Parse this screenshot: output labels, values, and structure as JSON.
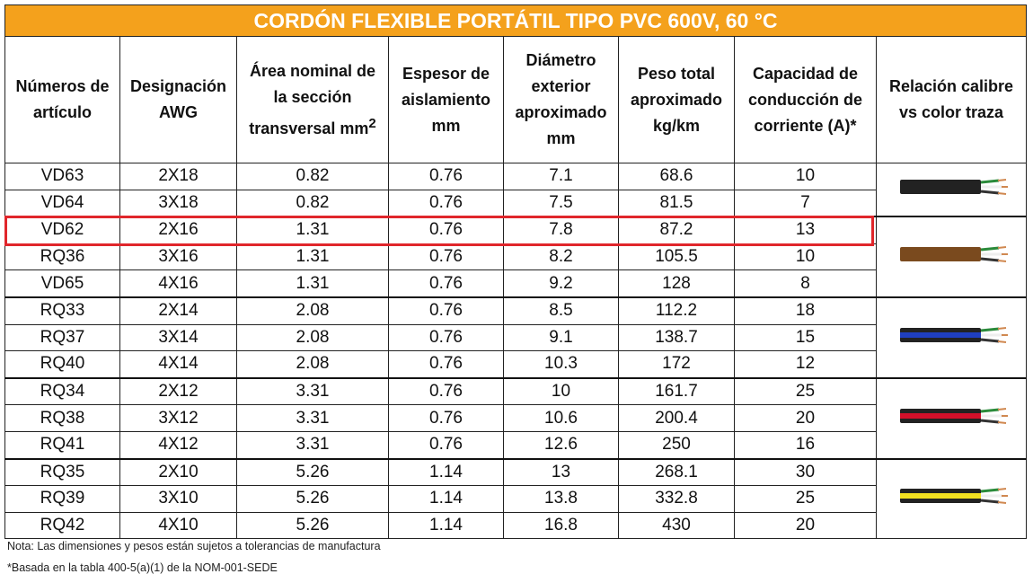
{
  "title": "CORDÓN FLEXIBLE PORTÁTIL TIPO PVC 600V, 60 °C",
  "header": [
    "Números de artículo",
    "Designación AWG",
    {
      "text": "Área nominal de la sección transversal mm",
      "sup": "2"
    },
    "Espesor de aislamiento mm",
    "Diámetro exterior aproximado mm",
    "Peso total aproximado kg/km",
    "Capacidad de conducción de corriente (A)*",
    "Relación calibre vs color traza"
  ],
  "rows": [
    [
      "VD63",
      "2X18",
      "0.82",
      "0.76",
      "7.1",
      "68.6",
      "10"
    ],
    [
      "VD64",
      "3X18",
      "0.82",
      "0.76",
      "7.5",
      "81.5",
      "7"
    ],
    [
      "VD62",
      "2X16",
      "1.31",
      "0.76",
      "7.8",
      "87.2",
      "13"
    ],
    [
      "RQ36",
      "3X16",
      "1.31",
      "0.76",
      "8.2",
      "105.5",
      "10"
    ],
    [
      "VD65",
      "4X16",
      "1.31",
      "0.76",
      "9.2",
      "128",
      "8"
    ],
    [
      "RQ33",
      "2X14",
      "2.08",
      "0.76",
      "8.5",
      "112.2",
      "18"
    ],
    [
      "RQ37",
      "3X14",
      "2.08",
      "0.76",
      "9.1",
      "138.7",
      "15"
    ],
    [
      "RQ40",
      "4X14",
      "2.08",
      "0.76",
      "10.3",
      "172",
      "12"
    ],
    [
      "RQ34",
      "2X12",
      "3.31",
      "0.76",
      "10",
      "161.7",
      "25"
    ],
    [
      "RQ38",
      "3X12",
      "3.31",
      "0.76",
      "10.6",
      "200.4",
      "20"
    ],
    [
      "RQ41",
      "4X12",
      "3.31",
      "0.76",
      "12.6",
      "250",
      "16"
    ],
    [
      "RQ35",
      "2X10",
      "5.26",
      "1.14",
      "13",
      "268.1",
      "30"
    ],
    [
      "RQ39",
      "3X10",
      "5.26",
      "1.14",
      "13.8",
      "332.8",
      "25"
    ],
    [
      "RQ42",
      "4X10",
      "5.26",
      "1.14",
      "16.8",
      "430",
      "20"
    ]
  ],
  "notes": [
    "Nota: Las dimensiones y pesos están sujetos a tolerancias de manufactura",
    "*Basada en la tabla 400-5(a)(1) de la NOM-001-SEDE"
  ]
}
